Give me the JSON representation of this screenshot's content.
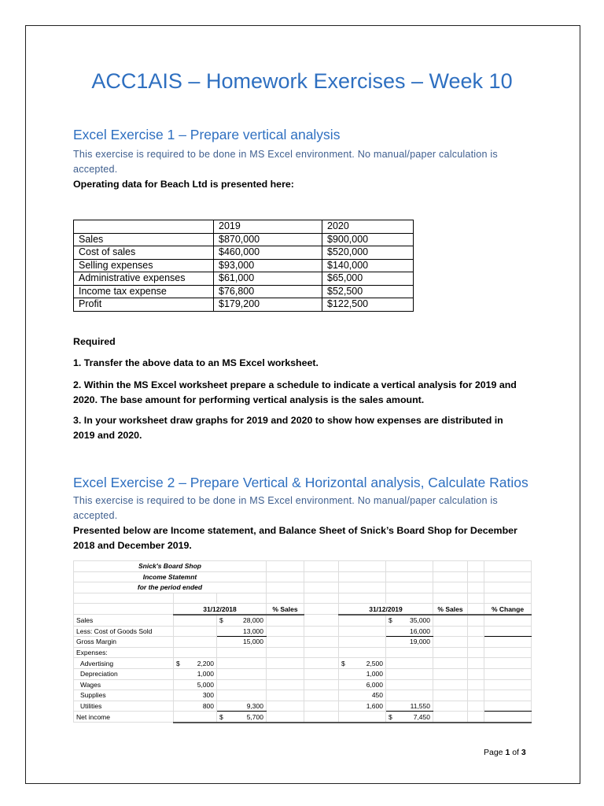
{
  "title": "ACC1AIS – Homework Exercises – Week 10",
  "ex1": {
    "heading": "Excel Exercise 1 – Prepare vertical analysis",
    "note": "This exercise is required to be done in MS Excel environment. No manual/paper calculation is accepted.",
    "intro": "Operating data for Beach Ltd is presented here:",
    "table": {
      "headers": [
        "",
        "2019",
        "2020"
      ],
      "rows": [
        [
          "Sales",
          "$870,000",
          "$900,000"
        ],
        [
          "Cost of sales",
          "$460,000",
          "$520,000"
        ],
        [
          "Selling expenses",
          "$93,000",
          "$140,000"
        ],
        [
          "Administrative expenses",
          "$61,000",
          "$65,000"
        ],
        [
          "Income tax expense",
          "$76,800",
          "$52,500"
        ],
        [
          "Profit",
          "$179,200",
          "$122,500"
        ]
      ]
    },
    "required": "Required",
    "items": [
      "1. Transfer the above data to an MS Excel worksheet.",
      "2. Within the MS Excel worksheet prepare a schedule to indicate a vertical analysis for 2019 and 2020. The base amount for performing vertical analysis is the sales amount.",
      "3. In your worksheet draw graphs for 2019 and 2020 to show how expenses are distributed in 2019 and 2020."
    ]
  },
  "ex2": {
    "heading": "Excel Exercise 2 – Prepare Vertical & Horizontal analysis, Calculate Ratios",
    "note": "This exercise is required to be done in MS Excel environment. No manual/paper calculation is accepted.",
    "intro": "Presented below are Income statement, and Balance Sheet of Snick’s Board Shop for December 2018 and December 2019.",
    "sheet": {
      "titles": [
        "Snick's Board Shop",
        "Income Statemnt",
        "for the period ended"
      ],
      "headers": {
        "date1": "31/12/2018",
        "pct1": "% Sales",
        "date2": "31/12/2019",
        "pct2": "% Sales",
        "change": "% Change"
      },
      "rows": [
        {
          "label": "Sales",
          "b": "",
          "c": "$ 28,000",
          "f": "",
          "g": "$ 35,000"
        },
        {
          "label": "Less: Cost of Goods Sold",
          "b": "",
          "c": "13,000",
          "f": "",
          "g": "16,000"
        },
        {
          "label": "Gross Margin",
          "b": "",
          "c": "15,000",
          "f": "",
          "g": "19,000"
        },
        {
          "label": "Expenses:",
          "b": "",
          "c": "",
          "f": "",
          "g": ""
        },
        {
          "label": "  Advertising",
          "b": "$ 2,200",
          "c": "",
          "f": "$ 2,500",
          "g": ""
        },
        {
          "label": "  Depreciation",
          "b": "1,000",
          "c": "",
          "f": "1,000",
          "g": ""
        },
        {
          "label": "  Wages",
          "b": "5,000",
          "c": "",
          "f": "6,000",
          "g": ""
        },
        {
          "label": "  Supplies",
          "b": "300",
          "c": "",
          "f": "450",
          "g": ""
        },
        {
          "label": "  Utilities",
          "b": "800",
          "c": "9,300",
          "f": "1,600",
          "g": "11,550"
        },
        {
          "label": "Net income",
          "b": "",
          "c": "$ 5,700",
          "f": "",
          "g": "$ 7,450"
        }
      ]
    }
  },
  "footer": {
    "page_label": "Page",
    "page": "1",
    "of_label": "of",
    "total": "3"
  }
}
